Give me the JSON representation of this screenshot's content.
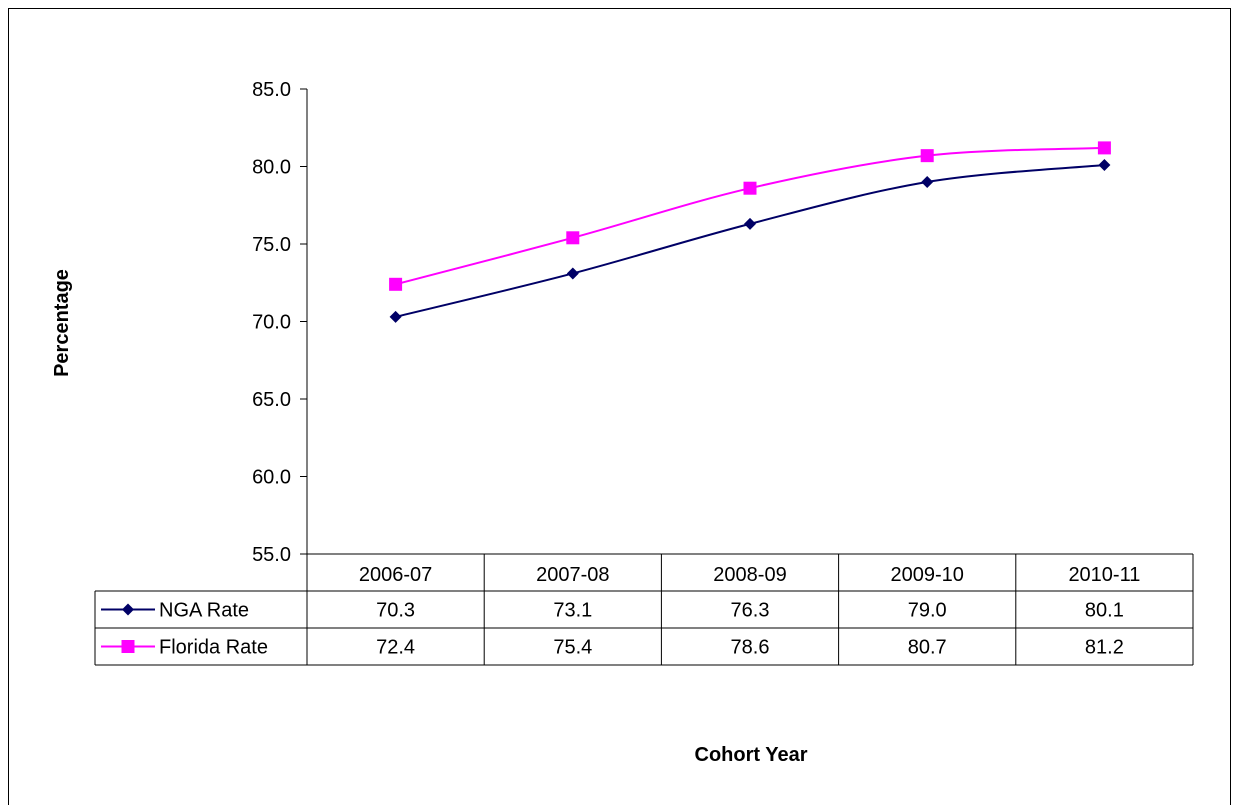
{
  "chart_data": {
    "type": "line",
    "title": "",
    "xlabel": "Cohort Year",
    "ylabel": "Percentage",
    "ylim": [
      55,
      85
    ],
    "y_ticks": [
      "85.0",
      "80.0",
      "75.0",
      "70.0",
      "65.0",
      "60.0",
      "55.0"
    ],
    "categories": [
      "2006-07",
      "2007-08",
      "2008-09",
      "2009-10",
      "2010-11"
    ],
    "grid": false,
    "legend_placement": "data-table",
    "series": [
      {
        "name": "NGA Rate",
        "values": [
          70.3,
          73.1,
          76.3,
          79.0,
          80.1
        ],
        "labels": [
          "70.3",
          "73.1",
          "76.3",
          "79.0",
          "80.1"
        ],
        "color": "#000066",
        "marker": "diamond"
      },
      {
        "name": "Florida Rate",
        "values": [
          72.4,
          75.4,
          78.6,
          80.7,
          81.2
        ],
        "labels": [
          "72.4",
          "75.4",
          "78.6",
          "80.7",
          "81.2"
        ],
        "color": "#FF00FF",
        "marker": "square"
      }
    ]
  }
}
